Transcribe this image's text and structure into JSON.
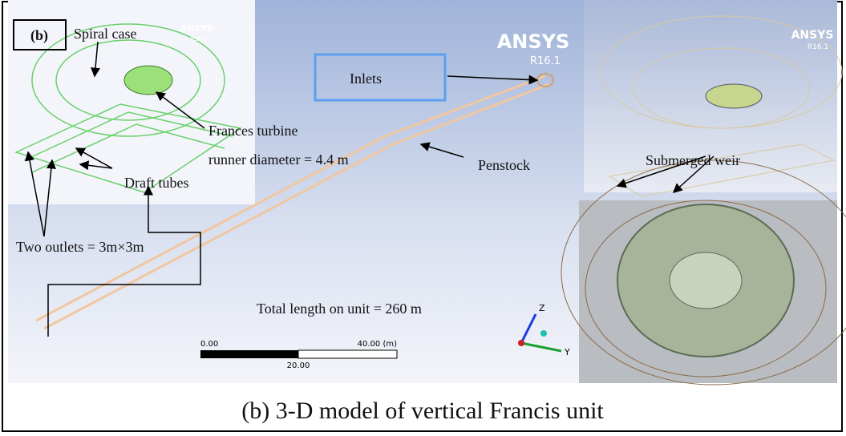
{
  "figure": {
    "panel_label": "(b)",
    "ansys_logos": [
      {
        "name": "ANSYS",
        "version": "R16.1"
      },
      {
        "name": "ANSYS",
        "version": "R16.1"
      },
      {
        "name": "ANSYS",
        "version": "R16.1"
      }
    ],
    "labels": {
      "spiral_case": "Spiral case",
      "inlets": "Inlets",
      "turbine": "Frances turbine",
      "runner": "runner diameter = 4.4 m",
      "penstock": "Penstock",
      "draft_tubes": "Draft tubes",
      "weir": "Submerged weir",
      "outlets": "Two outlets = 3m×3m",
      "total_length": "Total length on unit = 260 m"
    },
    "scale_bar": {
      "start": "0.00",
      "end": "40.00 (m)",
      "middle": "20.00"
    },
    "axes": {
      "z": "Z",
      "y": "Y"
    },
    "caption": "(b) 3-D model of vertical Francis unit"
  }
}
